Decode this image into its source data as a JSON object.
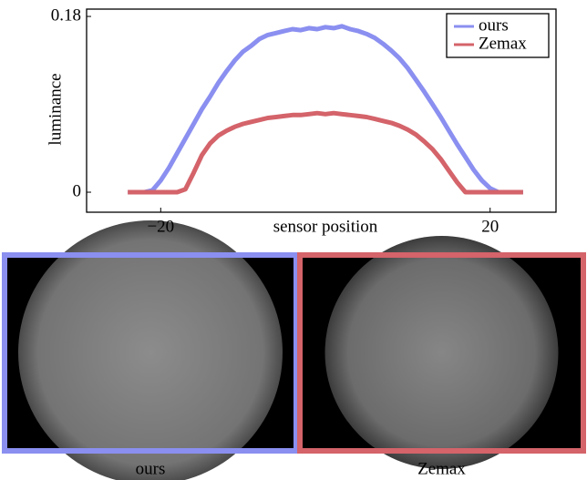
{
  "chart_data": {
    "type": "line",
    "xlabel": "sensor position",
    "ylabel": "luminance",
    "x": [
      -24,
      -23,
      -22,
      -21,
      -20,
      -19,
      -18,
      -17,
      -16,
      -15,
      -14,
      -13,
      -12,
      -11,
      -10,
      -9,
      -8,
      -7,
      -6,
      -5,
      -4,
      -3,
      -2,
      -1,
      0,
      1,
      2,
      3,
      4,
      5,
      6,
      7,
      8,
      9,
      10,
      11,
      12,
      13,
      14,
      15,
      16,
      17,
      18,
      19,
      20,
      21,
      22,
      23,
      24
    ],
    "series": [
      {
        "name": "ours",
        "color": "#8a8ff0",
        "values": [
          0,
          0,
          0,
          0.002,
          0.012,
          0.025,
          0.04,
          0.055,
          0.07,
          0.085,
          0.098,
          0.112,
          0.124,
          0.135,
          0.144,
          0.15,
          0.157,
          0.161,
          0.163,
          0.165,
          0.167,
          0.166,
          0.168,
          0.167,
          0.169,
          0.168,
          0.17,
          0.167,
          0.165,
          0.162,
          0.158,
          0.152,
          0.145,
          0.137,
          0.127,
          0.115,
          0.103,
          0.09,
          0.077,
          0.063,
          0.049,
          0.036,
          0.023,
          0.012,
          0.004,
          0,
          0,
          0,
          0
        ]
      },
      {
        "name": "Zemax",
        "color": "#d4636a",
        "values": [
          0,
          0,
          0,
          0,
          0,
          0,
          0,
          0.003,
          0.02,
          0.038,
          0.05,
          0.058,
          0.063,
          0.067,
          0.07,
          0.072,
          0.074,
          0.076,
          0.077,
          0.078,
          0.079,
          0.079,
          0.08,
          0.081,
          0.08,
          0.081,
          0.08,
          0.079,
          0.078,
          0.077,
          0.075,
          0.073,
          0.071,
          0.068,
          0.064,
          0.059,
          0.052,
          0.044,
          0.034,
          0.022,
          0.01,
          0,
          0,
          0,
          0,
          0,
          0,
          0,
          0
        ]
      }
    ],
    "xlim": [
      -29,
      28
    ],
    "ylim": [
      -0.0205,
      0.1875
    ],
    "xticks": [
      {
        "value": -20,
        "label": "−20"
      },
      20
    ],
    "yticks": [
      0,
      0.18
    ],
    "legend": "upper right"
  },
  "panels": [
    {
      "caption": "ours"
    },
    {
      "caption": "Zemax"
    }
  ]
}
